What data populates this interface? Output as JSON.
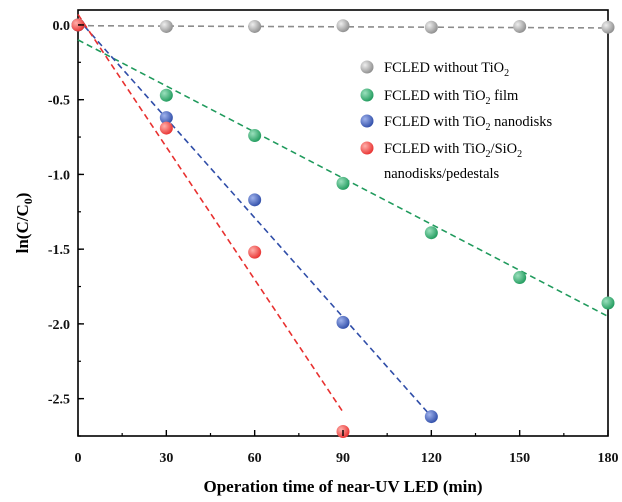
{
  "chart_data": {
    "type": "scatter",
    "xlabel": "Operation time of near-UV LED (min)",
    "ylabel": "ln(C/C0)",
    "xlim": [
      0,
      180
    ],
    "ylim": [
      -2.75,
      0.1
    ],
    "xticks": [
      "0",
      "30",
      "60",
      "90",
      "120",
      "150",
      "180"
    ],
    "yticks": [
      "0.0",
      "-0.5",
      "-1.0",
      "-1.5",
      "-2.0",
      "-2.5"
    ],
    "grid": false,
    "legend_position": "top-right",
    "series": [
      {
        "name": "FCLED without TiO2",
        "color": "#8c8c8c",
        "points": [
          [
            0,
            0.0
          ],
          [
            30,
            -0.01
          ],
          [
            60,
            -0.01
          ],
          [
            90,
            -0.005
          ],
          [
            120,
            -0.015
          ],
          [
            150,
            -0.01
          ],
          [
            180,
            -0.015
          ]
        ],
        "fit_line": [
          [
            0,
            -0.005
          ],
          [
            180,
            -0.02
          ]
        ]
      },
      {
        "name": "FCLED with TiO2 film",
        "color": "#1f9a5c",
        "points": [
          [
            0,
            0.0
          ],
          [
            30,
            -0.47
          ],
          [
            60,
            -0.74
          ],
          [
            90,
            -1.06
          ],
          [
            120,
            -1.39
          ],
          [
            150,
            -1.69
          ],
          [
            180,
            -1.86
          ]
        ],
        "fit_line": [
          [
            0,
            -0.1
          ],
          [
            180,
            -1.95
          ]
        ]
      },
      {
        "name": "FCLED with TiO2 nanodisks",
        "color": "#2f4da8",
        "points": [
          [
            0,
            0.0
          ],
          [
            30,
            -0.62
          ],
          [
            60,
            -1.17
          ],
          [
            90,
            -1.99
          ],
          [
            120,
            -2.62
          ]
        ],
        "fit_line": [
          [
            0,
            0.04
          ],
          [
            120,
            -2.62
          ]
        ]
      },
      {
        "name": "FCLED with TiO2/SiO2 nanodisks/pedestals",
        "color": "#e8302f",
        "points": [
          [
            0,
            0.0
          ],
          [
            30,
            -0.69
          ],
          [
            60,
            -1.52
          ],
          [
            90,
            -2.72
          ]
        ],
        "fit_line": [
          [
            0,
            0.07
          ],
          [
            90,
            -2.59
          ]
        ]
      }
    ]
  },
  "legend": {
    "labels": [
      {
        "pre": "FCLED without TiO",
        "sub": "2",
        "post": ""
      },
      {
        "pre": "FCLED with TiO",
        "sub": "2",
        "post": " film"
      },
      {
        "pre": "FCLED with TiO",
        "sub": "2",
        "post": " nanodisks"
      },
      {
        "pre": "FCLED with TiO",
        "sub": "2",
        "post": "/SiO",
        "sub2": "2"
      }
    ],
    "label4_line2": "nanodisks/pedestals"
  }
}
